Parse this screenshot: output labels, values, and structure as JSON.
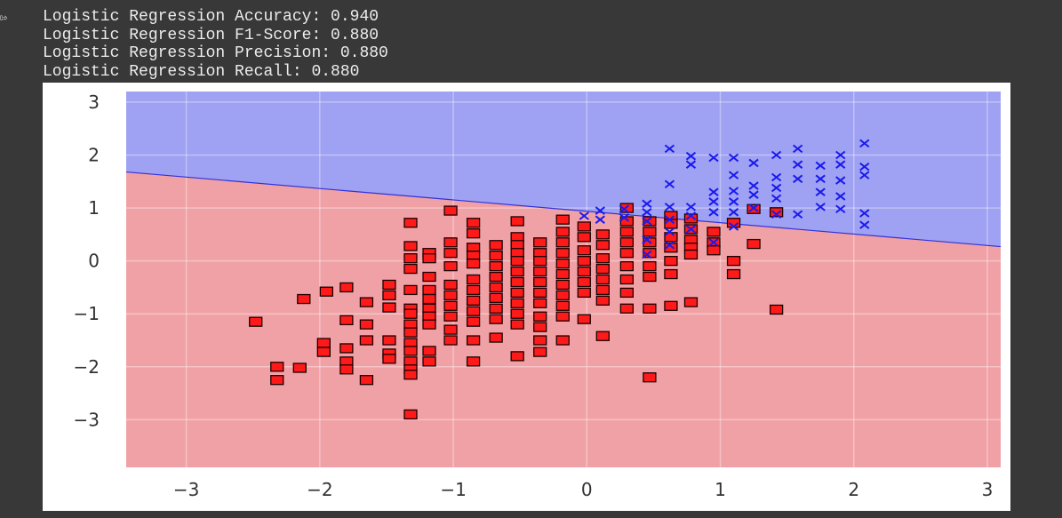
{
  "cell": {
    "run_indicator_icon": "output-arrow-icon",
    "output_lines": [
      "Logistic Regression Accuracy: 0.940",
      "Logistic Regression F1-Score: 0.880",
      "Logistic Regression Precision: 0.880",
      "Logistic Regression Recall: 0.880"
    ]
  },
  "chart_data": {
    "type": "scatter",
    "title": "",
    "xlabel": "",
    "ylabel": "",
    "xlim": [
      -3.45,
      3.1
    ],
    "ylim": [
      -3.9,
      3.2
    ],
    "xticks": [
      -3,
      -2,
      -1,
      0,
      1,
      2,
      3
    ],
    "yticks": [
      -3,
      -2,
      -1,
      0,
      1,
      2,
      3
    ],
    "xtick_labels": [
      "−3",
      "−2",
      "−1",
      "0",
      "1",
      "2",
      "3"
    ],
    "ytick_labels": [
      "−3",
      "−2",
      "−1",
      "0",
      "1",
      "2",
      "3"
    ],
    "grid": true,
    "decision_boundary": {
      "x": [
        -3.45,
        3.1
      ],
      "y": [
        1.68,
        0.27
      ]
    },
    "regions": [
      {
        "class": 1,
        "color": "#9fa1f2",
        "side": "above"
      },
      {
        "class": 0,
        "color": "#f0a1a6",
        "side": "below"
      }
    ],
    "colors": {
      "boundary": "#3232d8",
      "class0": "#ff1a1a",
      "class1": "#1a1aee"
    },
    "series": [
      {
        "marker": "square",
        "color": "#ff1a1a",
        "points": [
          [
            -2.48,
            -1.15
          ],
          [
            -2.32,
            -2.0
          ],
          [
            -2.32,
            -2.25
          ],
          [
            -2.15,
            -2.02
          ],
          [
            -2.12,
            -0.72
          ],
          [
            -1.97,
            -1.55
          ],
          [
            -1.97,
            -1.72
          ],
          [
            -1.95,
            -0.58
          ],
          [
            -1.8,
            -0.5
          ],
          [
            -1.8,
            -1.12
          ],
          [
            -1.8,
            -1.65
          ],
          [
            -1.8,
            -1.9
          ],
          [
            -1.8,
            -2.05
          ],
          [
            -1.65,
            -0.78
          ],
          [
            -1.65,
            -1.2
          ],
          [
            -1.65,
            -1.5
          ],
          [
            -1.65,
            -2.25
          ],
          [
            -1.48,
            -0.45
          ],
          [
            -1.48,
            -0.65
          ],
          [
            -1.48,
            -0.88
          ],
          [
            -1.48,
            -1.5
          ],
          [
            -1.48,
            -1.75
          ],
          [
            -1.48,
            -1.85
          ],
          [
            -1.32,
            0.72
          ],
          [
            -1.32,
            0.28
          ],
          [
            -1.32,
            0.05
          ],
          [
            -1.32,
            -0.15
          ],
          [
            -1.32,
            -0.55
          ],
          [
            -1.32,
            -0.9
          ],
          [
            -1.32,
            -1.0
          ],
          [
            -1.32,
            -1.2
          ],
          [
            -1.32,
            -1.35
          ],
          [
            -1.32,
            -1.55
          ],
          [
            -1.32,
            -1.7
          ],
          [
            -1.32,
            -1.9
          ],
          [
            -1.32,
            -2.05
          ],
          [
            -1.32,
            -2.15
          ],
          [
            -1.32,
            -2.9
          ],
          [
            -1.18,
            0.15
          ],
          [
            -1.18,
            0.05
          ],
          [
            -1.18,
            -0.3
          ],
          [
            -1.18,
            -0.55
          ],
          [
            -1.18,
            -0.72
          ],
          [
            -1.18,
            -0.9
          ],
          [
            -1.18,
            -1.05
          ],
          [
            -1.18,
            -1.2
          ],
          [
            -1.18,
            -1.7
          ],
          [
            -1.18,
            -1.9
          ],
          [
            -1.02,
            0.95
          ],
          [
            -1.02,
            0.35
          ],
          [
            -1.02,
            0.15
          ],
          [
            -1.02,
            -0.1
          ],
          [
            -1.02,
            -0.45
          ],
          [
            -1.02,
            -0.65
          ],
          [
            -1.02,
            -0.85
          ],
          [
            -1.02,
            -1.05
          ],
          [
            -1.02,
            -1.3
          ],
          [
            -1.02,
            -1.5
          ],
          [
            -0.85,
            0.72
          ],
          [
            -0.85,
            0.52
          ],
          [
            -0.85,
            0.25
          ],
          [
            -0.85,
            0.1
          ],
          [
            -0.85,
            -0.05
          ],
          [
            -0.85,
            -0.35
          ],
          [
            -0.85,
            -0.55
          ],
          [
            -0.85,
            -0.75
          ],
          [
            -0.85,
            -0.95
          ],
          [
            -0.85,
            -1.15
          ],
          [
            -0.85,
            -1.5
          ],
          [
            -0.85,
            -1.9
          ],
          [
            -0.68,
            0.3
          ],
          [
            -0.68,
            0.1
          ],
          [
            -0.68,
            -0.1
          ],
          [
            -0.68,
            -0.3
          ],
          [
            -0.68,
            -0.5
          ],
          [
            -0.68,
            -0.7
          ],
          [
            -0.68,
            -0.9
          ],
          [
            -0.68,
            -1.1
          ],
          [
            -0.68,
            -1.45
          ],
          [
            -0.52,
            0.75
          ],
          [
            -0.52,
            0.45
          ],
          [
            -0.52,
            0.3
          ],
          [
            -0.52,
            0.15
          ],
          [
            -0.52,
            0.0
          ],
          [
            -0.52,
            -0.2
          ],
          [
            -0.52,
            -0.4
          ],
          [
            -0.52,
            -0.6
          ],
          [
            -0.52,
            -0.8
          ],
          [
            -0.52,
            -1.0
          ],
          [
            -0.52,
            -1.2
          ],
          [
            -0.52,
            -1.8
          ],
          [
            -0.35,
            0.35
          ],
          [
            -0.35,
            0.15
          ],
          [
            -0.35,
            0.0
          ],
          [
            -0.35,
            -0.2
          ],
          [
            -0.35,
            -0.4
          ],
          [
            -0.35,
            -0.6
          ],
          [
            -0.35,
            -0.8
          ],
          [
            -0.35,
            -1.05
          ],
          [
            -0.35,
            -1.25
          ],
          [
            -0.35,
            -1.5
          ],
          [
            -0.35,
            -1.72
          ],
          [
            -0.18,
            0.78
          ],
          [
            -0.18,
            0.55
          ],
          [
            -0.18,
            0.35
          ],
          [
            -0.18,
            0.15
          ],
          [
            -0.18,
            -0.05
          ],
          [
            -0.18,
            -0.25
          ],
          [
            -0.18,
            -0.45
          ],
          [
            -0.18,
            -0.65
          ],
          [
            -0.18,
            -0.85
          ],
          [
            -0.18,
            -1.05
          ],
          [
            -0.18,
            -1.5
          ],
          [
            -0.02,
            0.65
          ],
          [
            -0.02,
            0.45
          ],
          [
            -0.02,
            0.2
          ],
          [
            -0.02,
            0.0
          ],
          [
            -0.02,
            -0.2
          ],
          [
            -0.02,
            -0.4
          ],
          [
            -0.02,
            -0.6
          ],
          [
            -0.02,
            -1.1
          ],
          [
            0.12,
            0.5
          ],
          [
            0.12,
            0.3
          ],
          [
            0.12,
            0.05
          ],
          [
            0.12,
            -0.15
          ],
          [
            0.12,
            -0.35
          ],
          [
            0.12,
            -0.55
          ],
          [
            0.12,
            -0.75
          ],
          [
            0.12,
            -1.42
          ],
          [
            0.3,
            1.0
          ],
          [
            0.3,
            0.75
          ],
          [
            0.3,
            0.55
          ],
          [
            0.3,
            0.35
          ],
          [
            0.3,
            0.15
          ],
          [
            0.3,
            -0.1
          ],
          [
            0.3,
            -0.35
          ],
          [
            0.3,
            -0.6
          ],
          [
            0.3,
            -0.9
          ],
          [
            0.47,
            0.75
          ],
          [
            0.47,
            0.55
          ],
          [
            0.47,
            0.35
          ],
          [
            0.47,
            0.15
          ],
          [
            0.47,
            -0.1
          ],
          [
            0.47,
            -0.3
          ],
          [
            0.47,
            -0.9
          ],
          [
            0.47,
            -2.2
          ],
          [
            0.63,
            0.85
          ],
          [
            0.63,
            0.7
          ],
          [
            0.63,
            0.45
          ],
          [
            0.63,
            0.25
          ],
          [
            0.63,
            0.0
          ],
          [
            0.63,
            -0.25
          ],
          [
            0.63,
            -0.85
          ],
          [
            0.78,
            0.8
          ],
          [
            0.78,
            0.6
          ],
          [
            0.78,
            0.4
          ],
          [
            0.78,
            0.25
          ],
          [
            0.78,
            0.12
          ],
          [
            0.78,
            -0.78
          ],
          [
            0.95,
            0.55
          ],
          [
            0.95,
            0.35
          ],
          [
            0.95,
            0.2
          ],
          [
            1.1,
            0.72
          ],
          [
            1.1,
            0.0
          ],
          [
            1.1,
            -0.25
          ],
          [
            1.25,
            0.98
          ],
          [
            1.25,
            0.32
          ],
          [
            1.42,
            0.92
          ],
          [
            1.42,
            -0.92
          ]
        ]
      },
      {
        "marker": "x",
        "color": "#1a1aee",
        "points": [
          [
            -0.02,
            0.85
          ],
          [
            0.1,
            0.95
          ],
          [
            0.1,
            0.78
          ],
          [
            0.28,
            0.98
          ],
          [
            0.28,
            0.82
          ],
          [
            0.45,
            1.08
          ],
          [
            0.45,
            0.92
          ],
          [
            0.45,
            0.75
          ],
          [
            0.45,
            0.4
          ],
          [
            0.45,
            0.12
          ],
          [
            0.62,
            2.12
          ],
          [
            0.62,
            1.45
          ],
          [
            0.62,
            1.02
          ],
          [
            0.62,
            0.78
          ],
          [
            0.62,
            0.55
          ],
          [
            0.62,
            0.3
          ],
          [
            0.78,
            1.98
          ],
          [
            0.78,
            1.82
          ],
          [
            0.78,
            1.02
          ],
          [
            0.78,
            0.85
          ],
          [
            0.78,
            0.6
          ],
          [
            0.95,
            1.95
          ],
          [
            0.95,
            1.3
          ],
          [
            0.95,
            1.12
          ],
          [
            0.95,
            0.92
          ],
          [
            0.95,
            0.35
          ],
          [
            1.1,
            1.95
          ],
          [
            1.1,
            1.62
          ],
          [
            1.1,
            1.32
          ],
          [
            1.1,
            1.12
          ],
          [
            1.1,
            0.92
          ],
          [
            1.1,
            0.65
          ],
          [
            1.25,
            1.85
          ],
          [
            1.25,
            1.42
          ],
          [
            1.25,
            1.25
          ],
          [
            1.25,
            1.0
          ],
          [
            1.42,
            2.0
          ],
          [
            1.42,
            1.58
          ],
          [
            1.42,
            1.38
          ],
          [
            1.42,
            1.18
          ],
          [
            1.42,
            0.88
          ],
          [
            1.58,
            2.12
          ],
          [
            1.58,
            1.82
          ],
          [
            1.58,
            1.55
          ],
          [
            1.58,
            0.88
          ],
          [
            1.75,
            1.8
          ],
          [
            1.75,
            1.55
          ],
          [
            1.75,
            1.3
          ],
          [
            1.75,
            1.02
          ],
          [
            1.9,
            2.0
          ],
          [
            1.9,
            1.82
          ],
          [
            1.9,
            1.52
          ],
          [
            1.9,
            1.22
          ],
          [
            1.9,
            0.98
          ],
          [
            2.08,
            2.22
          ],
          [
            2.08,
            1.78
          ],
          [
            2.08,
            1.62
          ],
          [
            2.08,
            0.9
          ],
          [
            2.08,
            0.68
          ]
        ]
      }
    ]
  }
}
